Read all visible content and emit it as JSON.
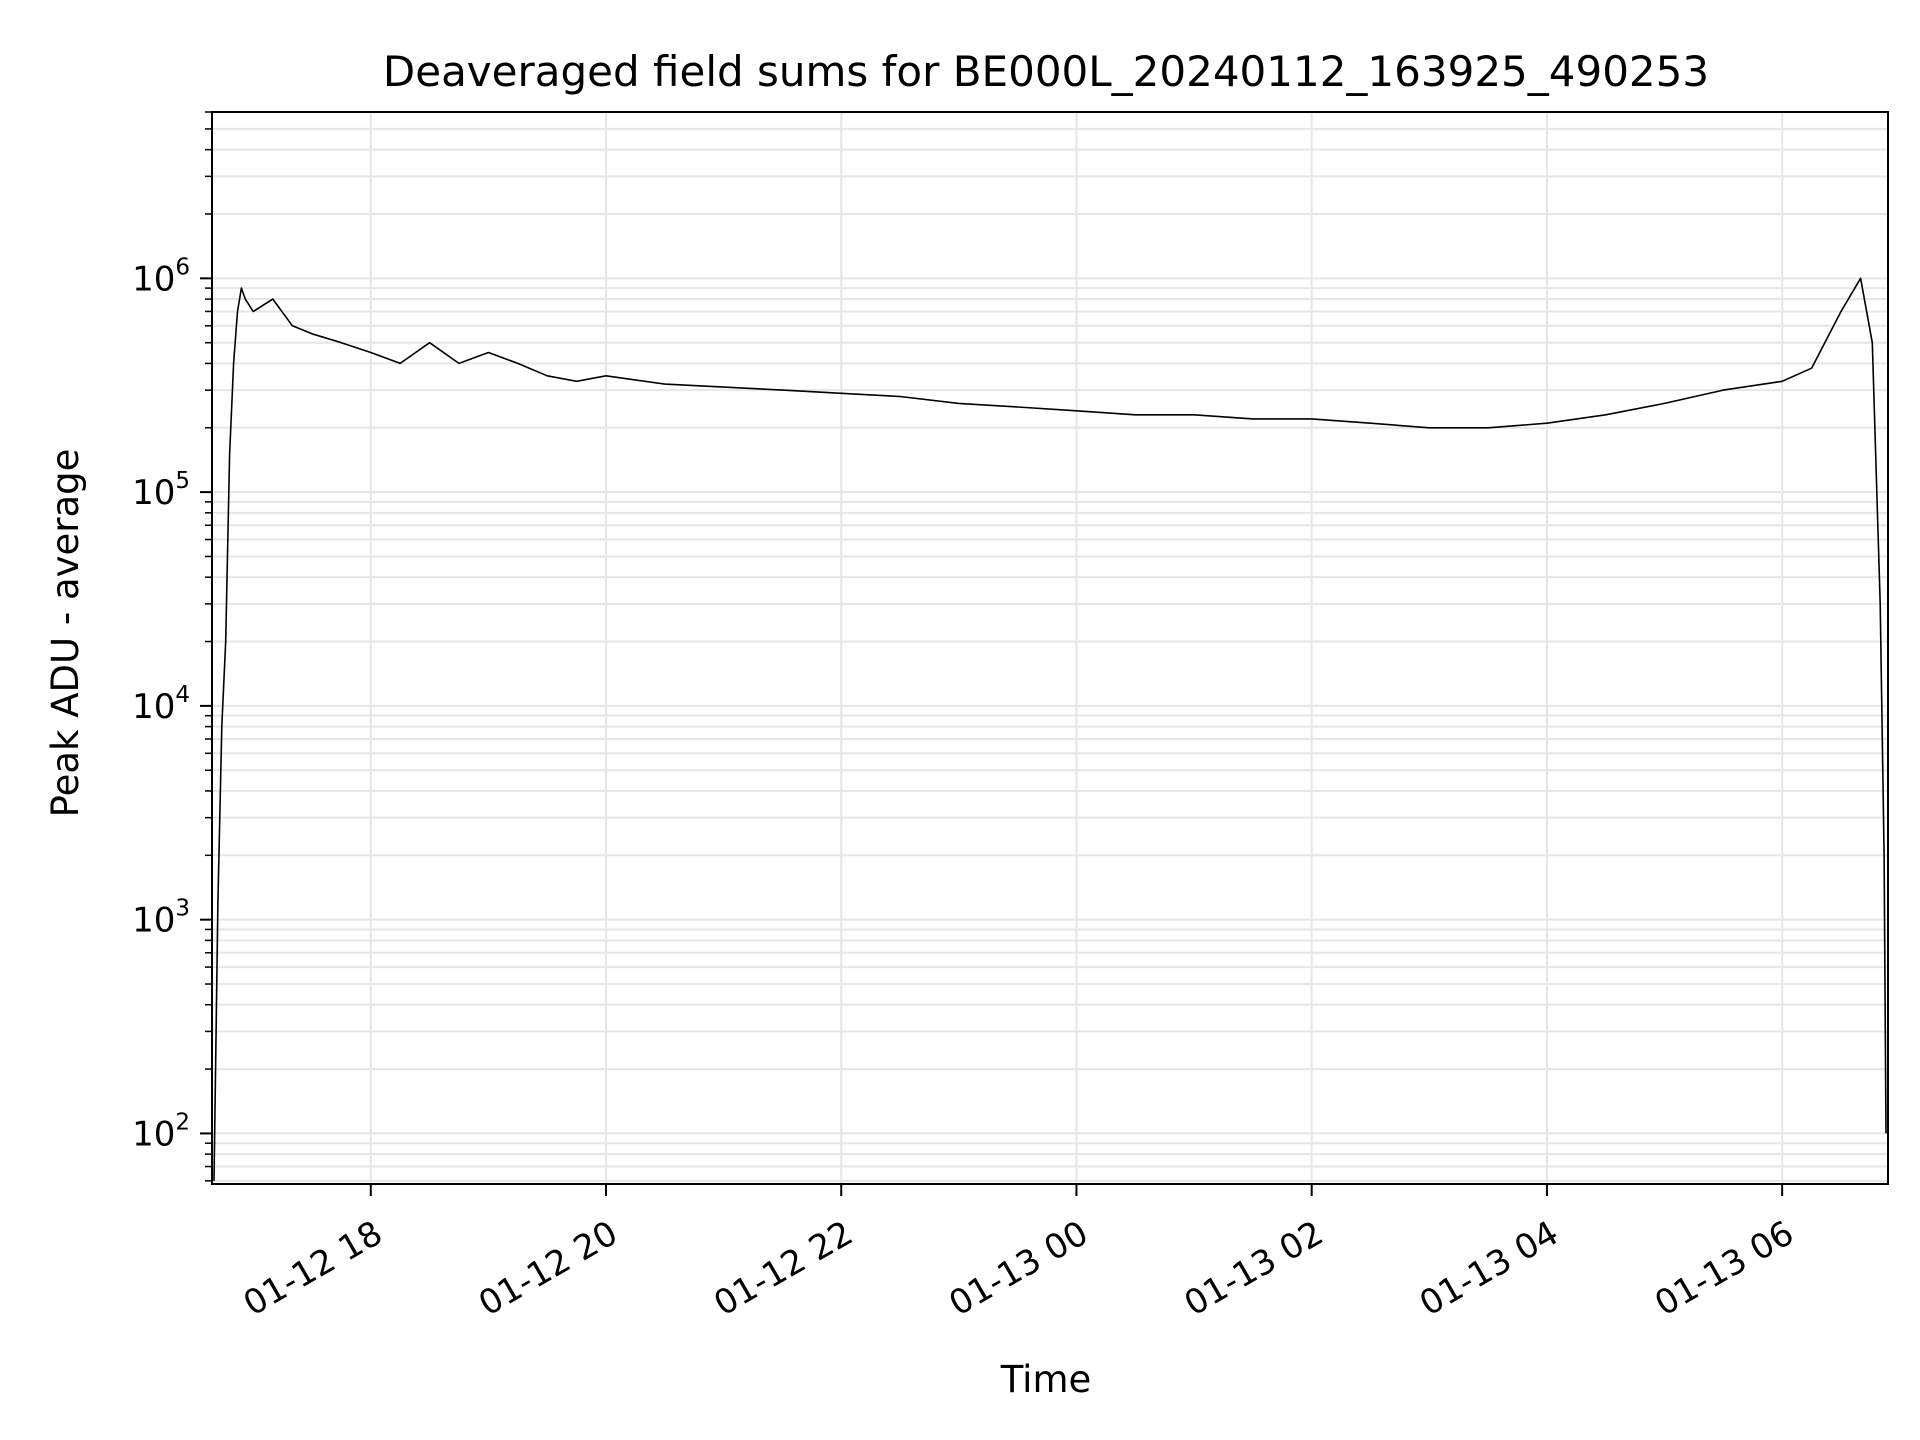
{
  "chart_data": {
    "type": "line",
    "title": "Deaveraged field sums for BE000L_20240112_163925_490253",
    "xlabel": "Time",
    "ylabel": "Peak ADU - average",
    "yscale": "log",
    "ylim": [
      58,
      6000000
    ],
    "xlim": [
      "2024-01-12 16:39",
      "2024-01-13 06:54"
    ],
    "grid": true,
    "line_color": "#000000",
    "grid_color": "#e6e6e6",
    "x_ticks": [
      {
        "value": "2024-01-12 18:00",
        "label": "01-12 18"
      },
      {
        "value": "2024-01-12 20:00",
        "label": "01-12 20"
      },
      {
        "value": "2024-01-12 22:00",
        "label": "01-12 22"
      },
      {
        "value": "2024-01-13 00:00",
        "label": "01-13 00"
      },
      {
        "value": "2024-01-13 02:00",
        "label": "01-13 02"
      },
      {
        "value": "2024-01-13 04:00",
        "label": "01-13 04"
      },
      {
        "value": "2024-01-13 06:00",
        "label": "01-13 06"
      }
    ],
    "y_ticks": [
      {
        "value": 100,
        "base": "10",
        "exp": "2"
      },
      {
        "value": 1000,
        "base": "10",
        "exp": "3"
      },
      {
        "value": 10000,
        "base": "10",
        "exp": "4"
      },
      {
        "value": 100000,
        "base": "10",
        "exp": "5"
      },
      {
        "value": 1000000,
        "base": "10",
        "exp": "6"
      }
    ],
    "series": [
      {
        "x": [
          "2024-01-12 16:40",
          "2024-01-12 16:42",
          "2024-01-12 16:44",
          "2024-01-12 16:46",
          "2024-01-12 16:48",
          "2024-01-12 16:50",
          "2024-01-12 16:52",
          "2024-01-12 16:54",
          "2024-01-12 16:56",
          "2024-01-12 17:00",
          "2024-01-12 17:10",
          "2024-01-12 17:20",
          "2024-01-12 17:30",
          "2024-01-12 17:45",
          "2024-01-12 18:00",
          "2024-01-12 18:15",
          "2024-01-12 18:30",
          "2024-01-12 18:45",
          "2024-01-12 19:00",
          "2024-01-12 19:15",
          "2024-01-12 19:30",
          "2024-01-12 19:45",
          "2024-01-12 20:00",
          "2024-01-12 20:30",
          "2024-01-12 21:00",
          "2024-01-12 21:30",
          "2024-01-12 22:00",
          "2024-01-12 22:30",
          "2024-01-12 23:00",
          "2024-01-12 23:30",
          "2024-01-13 00:00",
          "2024-01-13 00:30",
          "2024-01-13 01:00",
          "2024-01-13 01:30",
          "2024-01-13 02:00",
          "2024-01-13 02:30",
          "2024-01-13 03:00",
          "2024-01-13 03:30",
          "2024-01-13 04:00",
          "2024-01-13 04:30",
          "2024-01-13 05:00",
          "2024-01-13 05:30",
          "2024-01-13 06:00",
          "2024-01-13 06:15",
          "2024-01-13 06:30",
          "2024-01-13 06:40",
          "2024-01-13 06:46",
          "2024-01-13 06:50",
          "2024-01-13 06:52",
          "2024-01-13 06:53"
        ],
        "y": [
          60,
          1200,
          8000,
          20000,
          150000,
          400000,
          700000,
          900000,
          800000,
          700000,
          800000,
          600000,
          550000,
          500000,
          450000,
          400000,
          500000,
          400000,
          450000,
          400000,
          350000,
          330000,
          350000,
          320000,
          310000,
          300000,
          290000,
          280000,
          260000,
          250000,
          240000,
          230000,
          230000,
          220000,
          220000,
          210000,
          200000,
          200000,
          210000,
          230000,
          260000,
          300000,
          330000,
          380000,
          700000,
          1000000,
          500000,
          30000,
          2000,
          100
        ]
      }
    ]
  }
}
